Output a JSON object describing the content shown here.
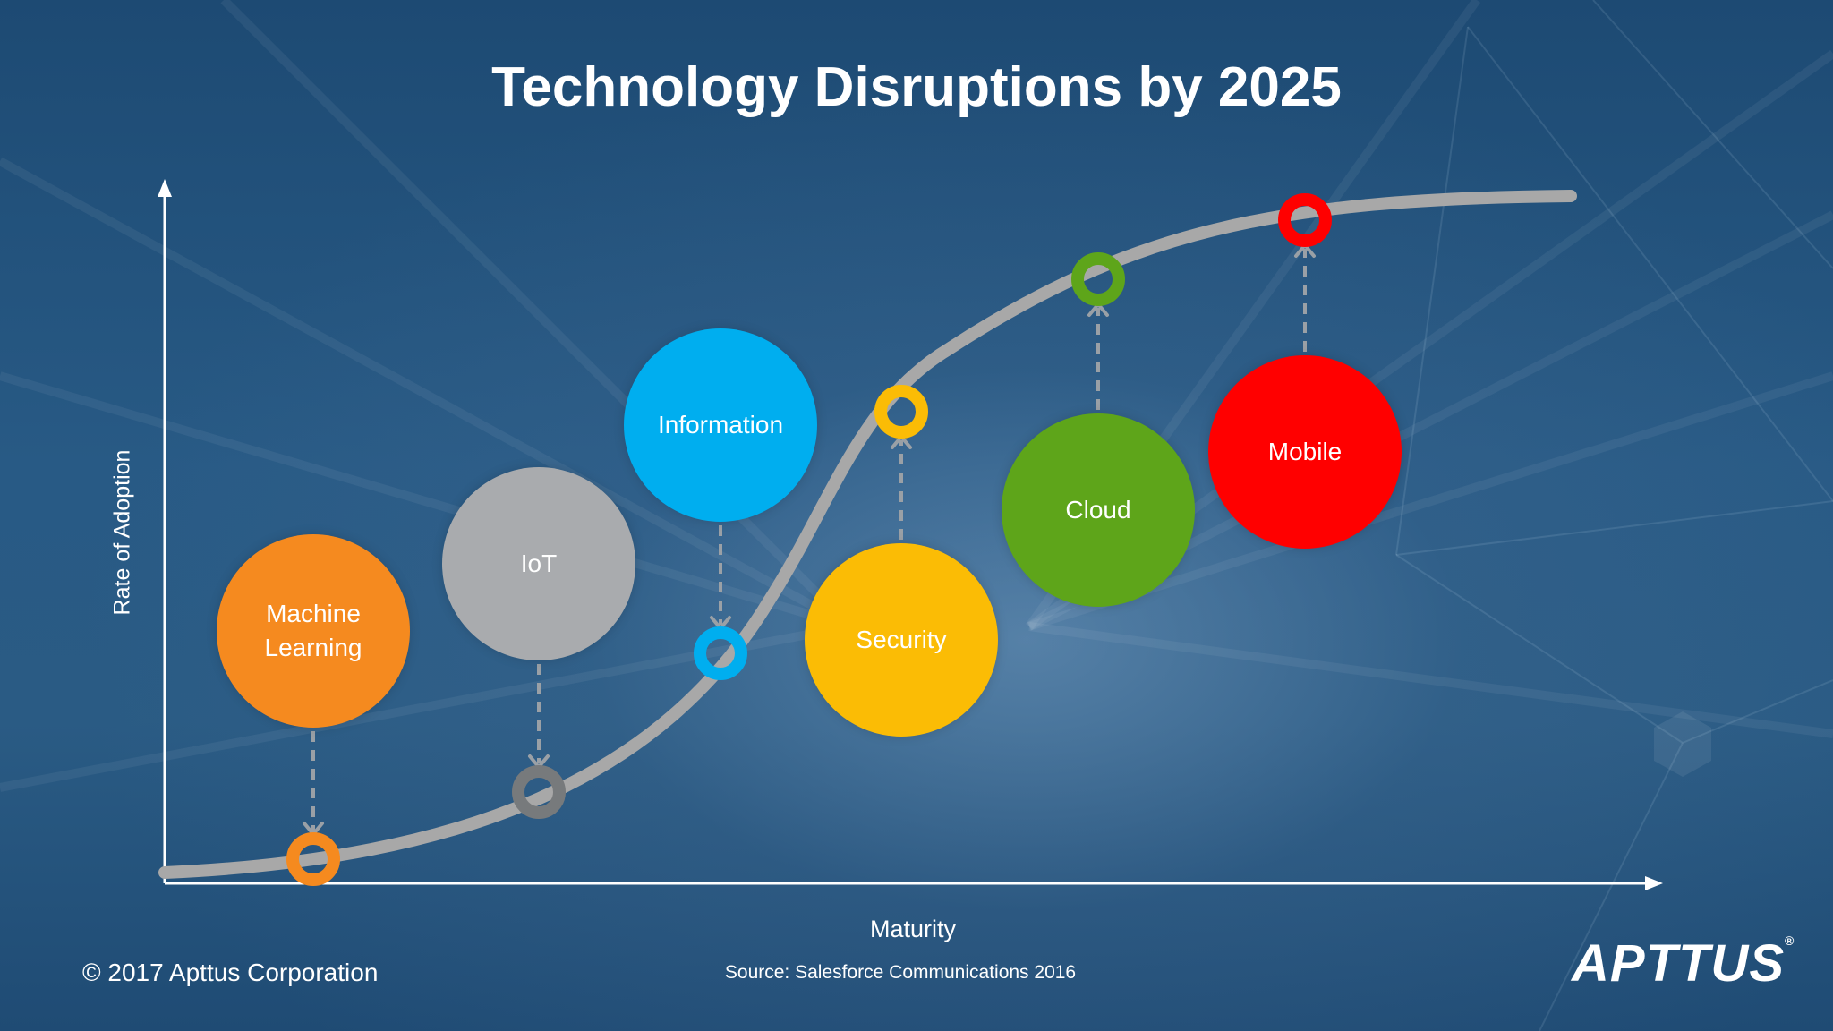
{
  "title": "Technology Disruptions by 2025",
  "y_axis_label": "Rate of Adoption",
  "x_axis_label": "Maturity",
  "copyright": "© 2017 Apttus Corporation",
  "source": "Source: Salesforce Communications 2016",
  "logo": {
    "text": "APTTUS",
    "mark": "®"
  },
  "colors": {
    "background": "#1f4b74",
    "curve": "#a8a8a8",
    "machine_learning": "#f58a1f",
    "iot": "#a9abae",
    "information": "#00aeef",
    "security": "#fbbc05",
    "cloud": "#5ea51a",
    "mobile": "#ff0000"
  },
  "technologies": [
    {
      "key": "machine_learning",
      "lines": [
        "Machine",
        "Learning"
      ],
      "color": "#f58a1f",
      "marker_color": "#f58a1f",
      "arrow": "down"
    },
    {
      "key": "iot",
      "lines": [
        "IoT"
      ],
      "color": "#a9abae",
      "marker_color": "#777a7c",
      "arrow": "down"
    },
    {
      "key": "information",
      "lines": [
        "Information"
      ],
      "color": "#00aeef",
      "marker_color": "#00aeef",
      "arrow": "down"
    },
    {
      "key": "security",
      "lines": [
        "Security"
      ],
      "color": "#fbbc05",
      "marker_color": "#fbbc05",
      "arrow": "up"
    },
    {
      "key": "cloud",
      "lines": [
        "Cloud"
      ],
      "color": "#5ea51a",
      "marker_color": "#5ea51a",
      "arrow": "up"
    },
    {
      "key": "mobile",
      "lines": [
        "Mobile"
      ],
      "color": "#ff0000",
      "marker_color": "#ff0000",
      "arrow": "up"
    }
  ]
}
